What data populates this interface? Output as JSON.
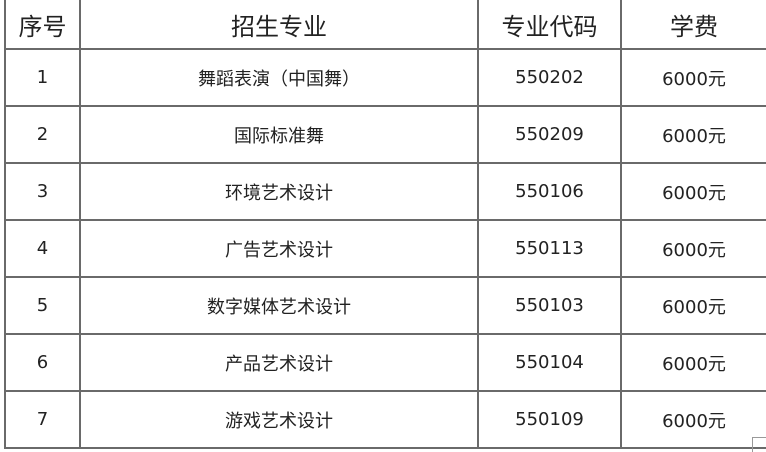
{
  "table": {
    "headers": [
      "序号",
      "招生专业",
      "专业代码",
      "学费"
    ],
    "rows": [
      [
        "1",
        "舞蹈表演（中国舞）",
        "550202",
        "6000元"
      ],
      [
        "2",
        "国际标准舞",
        "550209",
        "6000元"
      ],
      [
        "3",
        "环境艺术设计",
        "550106",
        "6000元"
      ],
      [
        "4",
        "广告艺术设计",
        "550113",
        "6000元"
      ],
      [
        "5",
        "数字媒体艺术设计",
        "550103",
        "6000元"
      ],
      [
        "6",
        "产品艺术设计",
        "550104",
        "6000元"
      ],
      [
        "7",
        "游戏艺术设计",
        "550109",
        "6000元"
      ]
    ]
  }
}
